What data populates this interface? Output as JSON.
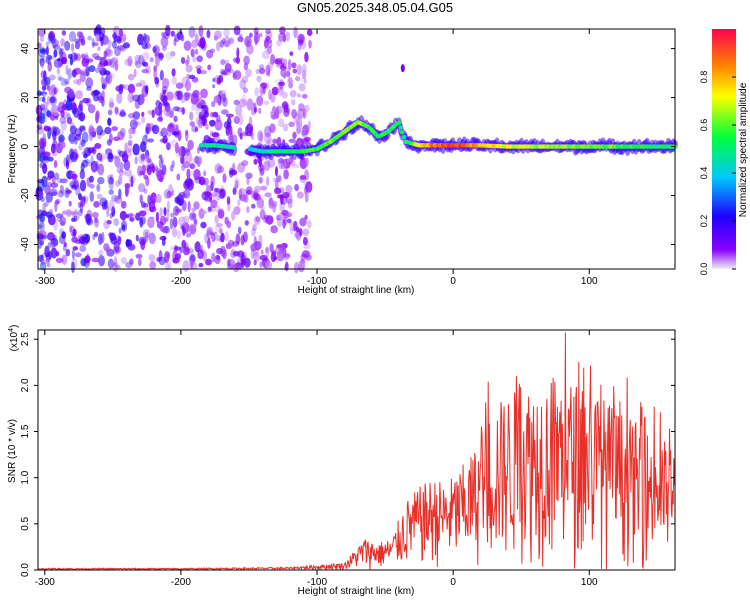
{
  "figure_title": "GN05.2025.348.05.04.G05",
  "colors": {
    "snr_line": "#e8302a",
    "axis": "#000000",
    "background_bins": "#8a4bff",
    "colormap": [
      "#f0f0f0",
      "#8a00ff",
      "#1e00ff",
      "#00c8ff",
      "#00ff3a",
      "#ffff00",
      "#ff8000",
      "#ff0030"
    ]
  },
  "chart_data": [
    {
      "type": "heatmap",
      "title": "GN05.2025.348.05.04.G05",
      "xlabel": "Height of straight line (km)",
      "ylabel": "Frequency (Hz)",
      "xlim": [
        -305,
        163
      ],
      "ylim": [
        -50,
        48
      ],
      "xticks": [
        -300,
        -200,
        -100,
        0,
        100
      ],
      "yticks": [
        -40,
        -20,
        0,
        20,
        40
      ],
      "colorbar": {
        "label": "Normalized spectral amplitude",
        "range": [
          0,
          1
        ],
        "ticks": [
          0.0,
          0.2,
          0.4,
          0.6,
          0.8
        ]
      },
      "signal_track": [
        {
          "height_km": -185,
          "freq_hz": 0.5,
          "amplitude": 0.45
        },
        {
          "height_km": -175,
          "freq_hz": 0.5,
          "amplitude": 0.5
        },
        {
          "height_km": -150,
          "freq_hz": -1,
          "amplitude": 0.4
        },
        {
          "height_km": -140,
          "freq_hz": -2,
          "amplitude": 0.45
        },
        {
          "height_km": -120,
          "freq_hz": -2,
          "amplitude": 0.5
        },
        {
          "height_km": -110,
          "freq_hz": -2,
          "amplitude": 0.55
        },
        {
          "height_km": -100,
          "freq_hz": -1,
          "amplitude": 0.55
        },
        {
          "height_km": -90,
          "freq_hz": 2,
          "amplitude": 0.6
        },
        {
          "height_km": -80,
          "freq_hz": 6,
          "amplitude": 0.6
        },
        {
          "height_km": -70,
          "freq_hz": 10,
          "amplitude": 0.65
        },
        {
          "height_km": -62,
          "freq_hz": 8,
          "amplitude": 0.55
        },
        {
          "height_km": -55,
          "freq_hz": 4,
          "amplitude": 0.55
        },
        {
          "height_km": -48,
          "freq_hz": 6,
          "amplitude": 0.55
        },
        {
          "height_km": -40,
          "freq_hz": 10,
          "amplitude": 0.55
        },
        {
          "height_km": -35,
          "freq_hz": 2,
          "amplitude": 0.5
        },
        {
          "height_km": -25,
          "freq_hz": 0.5,
          "amplitude": 0.7
        },
        {
          "height_km": -15,
          "freq_hz": 0.5,
          "amplitude": 0.85
        },
        {
          "height_km": 0,
          "freq_hz": 0.5,
          "amplitude": 0.95
        },
        {
          "height_km": 20,
          "freq_hz": 0.5,
          "amplitude": 0.8
        },
        {
          "height_km": 40,
          "freq_hz": 0,
          "amplitude": 0.7
        },
        {
          "height_km": 60,
          "freq_hz": 0,
          "amplitude": 0.65
        },
        {
          "height_km": 80,
          "freq_hz": 0,
          "amplitude": 0.65
        },
        {
          "height_km": 100,
          "freq_hz": 0,
          "amplitude": 0.6
        },
        {
          "height_km": 120,
          "freq_hz": 0,
          "amplitude": 0.6
        },
        {
          "height_km": 140,
          "freq_hz": 0,
          "amplitude": 0.55
        },
        {
          "height_km": 160,
          "freq_hz": 0,
          "amplitude": 0.5
        }
      ],
      "noise_region_km": [
        -305,
        -105
      ]
    },
    {
      "type": "line",
      "xlabel": "Height of straight line (km)",
      "ylabel": "SNR (10 * v/v)",
      "y_multiplier": "(x10^4)",
      "xlim": [
        -305,
        163
      ],
      "ylim": [
        0,
        2.6
      ],
      "xticks": [
        -300,
        -200,
        -100,
        0,
        100
      ],
      "yticks": [
        0.0,
        0.5,
        1.0,
        1.5,
        2.0,
        2.5
      ],
      "envelope": [
        {
          "x": -305,
          "y": 0.02
        },
        {
          "x": -200,
          "y": 0.02
        },
        {
          "x": -120,
          "y": 0.03
        },
        {
          "x": -80,
          "y": 0.08
        },
        {
          "x": -65,
          "y": 0.35
        },
        {
          "x": -55,
          "y": 0.3
        },
        {
          "x": -45,
          "y": 0.35
        },
        {
          "x": -35,
          "y": 0.75
        },
        {
          "x": -25,
          "y": 0.9
        },
        {
          "x": -15,
          "y": 1.0
        },
        {
          "x": -5,
          "y": 0.95
        },
        {
          "x": 5,
          "y": 1.1
        },
        {
          "x": 15,
          "y": 1.3
        },
        {
          "x": 30,
          "y": 1.8
        },
        {
          "x": 50,
          "y": 2.0
        },
        {
          "x": 75,
          "y": 2.1
        },
        {
          "x": 100,
          "y": 2.0
        },
        {
          "x": 125,
          "y": 1.7
        },
        {
          "x": 145,
          "y": 1.5
        },
        {
          "x": 163,
          "y": 1.35
        }
      ]
    }
  ]
}
